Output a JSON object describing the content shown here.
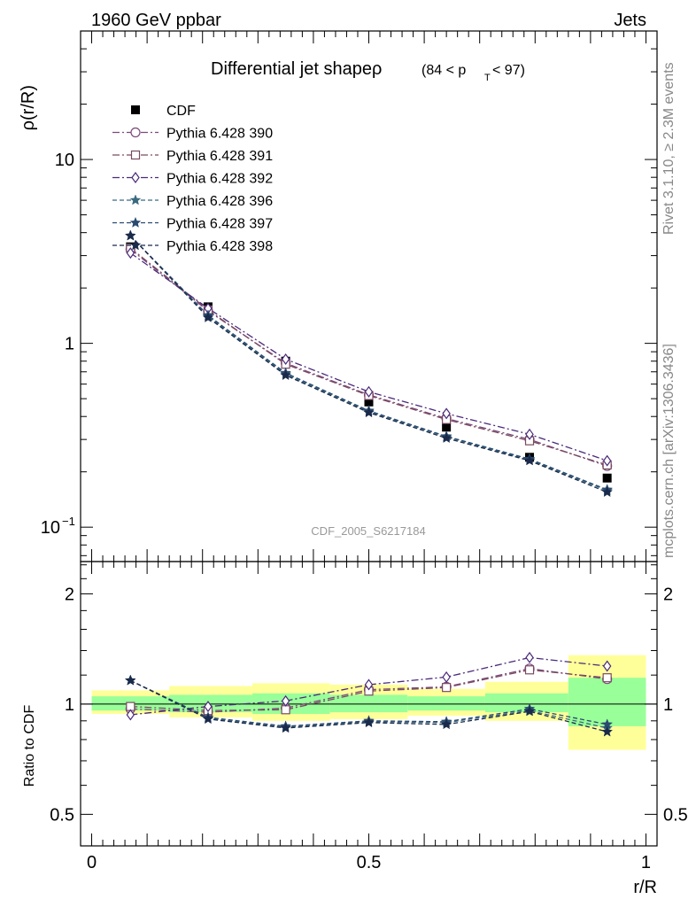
{
  "header": {
    "left": "1960 GeV ppbar",
    "right": "Jets"
  },
  "side_labels": {
    "top": "Rivet 3.1.10, ≥ 2.3M events",
    "bottom": "mcplots.cern.ch [arXiv:1306.3436]"
  },
  "watermark": "CDF_2005_S6217184",
  "colors": {
    "green_band": "#99ff99",
    "yellow_band": "#ffff99",
    "frame": "#000000"
  },
  "chart_data": [
    {
      "type": "line",
      "title": "Differential jet shapeρ",
      "title_suffix": "(84 < p",
      "title_sub": "T",
      "title_end": " < 97)",
      "xlabel": "r/R",
      "ylabel": "ρ(r/R)",
      "yscale": "log",
      "xlim": [
        -0.02,
        1.02
      ],
      "ylim": [
        0.065,
        50
      ],
      "y_ticks": [
        {
          "value": 0.1,
          "label": "10",
          "exp": "−1"
        },
        {
          "value": 1,
          "label": "1"
        },
        {
          "value": 10,
          "label": "10"
        }
      ],
      "grid": false,
      "legend_position": "top-left",
      "x": [
        0.07,
        0.21,
        0.35,
        0.5,
        0.64,
        0.79,
        0.93
      ],
      "series": [
        {
          "name": "CDF",
          "color": "#000000",
          "marker": "filled-square",
          "dash": "none",
          "values": [
            3.35,
            1.58,
            0.8,
            0.48,
            0.35,
            0.24,
            0.185
          ]
        },
        {
          "name": "Pythia 6.428 390",
          "color": "#7a4a7a",
          "marker": "open-circle",
          "dash": "8,3,2,3",
          "values": [
            3.25,
            1.5,
            0.78,
            0.525,
            0.39,
            0.3,
            0.215
          ]
        },
        {
          "name": "Pythia 6.428 391",
          "color": "#7a4a60",
          "marker": "open-square",
          "dash": "8,3,2,3",
          "values": [
            3.3,
            1.52,
            0.77,
            0.52,
            0.385,
            0.295,
            0.218
          ]
        },
        {
          "name": "Pythia 6.428 392",
          "color": "#4a2a7a",
          "marker": "open-diamond",
          "dash": "8,3,2,3",
          "values": [
            3.1,
            1.55,
            0.82,
            0.545,
            0.415,
            0.32,
            0.23
          ]
        },
        {
          "name": "Pythia 6.428 396",
          "color": "#3a6a80",
          "marker": "star",
          "dash": "5,3",
          "values": [
            3.85,
            1.4,
            0.68,
            0.425,
            0.31,
            0.232,
            0.158
          ]
        },
        {
          "name": "Pythia 6.428 397",
          "color": "#2a4a70",
          "marker": "star",
          "dash": "5,3",
          "values": [
            3.85,
            1.42,
            0.69,
            0.43,
            0.312,
            0.235,
            0.16
          ]
        },
        {
          "name": "Pythia 6.428 398",
          "color": "#1a2a4a",
          "marker": "star",
          "dash": "5,3",
          "values": [
            3.85,
            1.38,
            0.67,
            0.42,
            0.305,
            0.23,
            0.155
          ]
        }
      ]
    },
    {
      "type": "line",
      "xlabel": "r/R",
      "ylabel": "Ratio to CDF",
      "yscale": "log",
      "xlim": [
        -0.02,
        1.02
      ],
      "ylim": [
        0.41,
        2.45
      ],
      "reference_line": 1,
      "y_ticks": [
        {
          "value": 0.5,
          "label": "0.5"
        },
        {
          "value": 1,
          "label": "1"
        },
        {
          "value": 2,
          "label": "2"
        }
      ],
      "x_ticks": [
        {
          "value": 0,
          "label": "0"
        },
        {
          "value": 0.5,
          "label": "0.5"
        },
        {
          "value": 1,
          "label": "1"
        }
      ],
      "bands": [
        {
          "x": [
            0.0,
            0.14
          ],
          "yellow": [
            0.94,
            1.09
          ],
          "green": [
            0.96,
            1.05
          ]
        },
        {
          "x": [
            0.14,
            0.29
          ],
          "yellow": [
            0.92,
            1.12
          ],
          "green": [
            0.95,
            1.06
          ]
        },
        {
          "x": [
            0.29,
            0.43
          ],
          "yellow": [
            0.9,
            1.14
          ],
          "green": [
            0.94,
            1.07
          ]
        },
        {
          "x": [
            0.43,
            0.57
          ],
          "yellow": [
            0.91,
            1.13
          ],
          "green": [
            0.95,
            1.06
          ]
        },
        {
          "x": [
            0.57,
            0.71
          ],
          "yellow": [
            0.93,
            1.1
          ],
          "green": [
            0.96,
            1.05
          ]
        },
        {
          "x": [
            0.71,
            0.86
          ],
          "yellow": [
            0.9,
            1.15
          ],
          "green": [
            0.95,
            1.07
          ]
        },
        {
          "x": [
            0.86,
            1.0
          ],
          "yellow": [
            0.75,
            1.36
          ],
          "green": [
            0.87,
            1.18
          ]
        }
      ],
      "series": [
        {
          "name": "Pythia 6.428 390",
          "values": [
            0.97,
            0.95,
            0.975,
            1.095,
            1.115,
            1.25,
            1.17
          ]
        },
        {
          "name": "Pythia 6.428 391",
          "values": [
            0.985,
            0.96,
            0.965,
            1.085,
            1.11,
            1.24,
            1.18
          ]
        },
        {
          "name": "Pythia 6.428 392",
          "values": [
            0.935,
            0.985,
            1.02,
            1.13,
            1.185,
            1.34,
            1.27
          ]
        },
        {
          "name": "Pythia 6.428 396",
          "values": [
            1.16,
            0.915,
            0.865,
            0.895,
            0.89,
            0.96,
            0.86
          ]
        },
        {
          "name": "Pythia 6.428 397",
          "values": [
            1.16,
            0.92,
            0.87,
            0.9,
            0.895,
            0.97,
            0.88
          ]
        },
        {
          "name": "Pythia 6.428 398",
          "values": [
            1.16,
            0.91,
            0.86,
            0.89,
            0.88,
            0.955,
            0.84
          ]
        }
      ]
    }
  ]
}
